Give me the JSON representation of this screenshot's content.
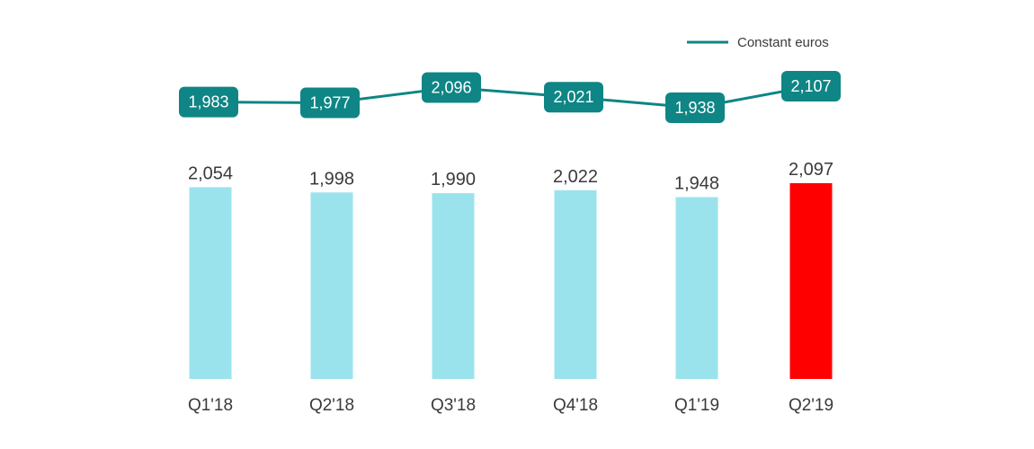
{
  "chart_data": {
    "type": "bar",
    "categories": [
      "Q1'18",
      "Q2'18",
      "Q3'18",
      "Q4'18",
      "Q1'19",
      "Q2'19"
    ],
    "values": [
      2054,
      1998,
      1990,
      2022,
      1948,
      2097
    ],
    "value_labels": [
      "2,054",
      "1,998",
      "1,990",
      "2,022",
      "1,948",
      "2,097"
    ],
    "ylim": [
      0,
      2097
    ],
    "highlight_index": 5,
    "line_series": {
      "name": "Constant euros",
      "values": [
        1983,
        1977,
        2096,
        2021,
        1938,
        2107
      ],
      "value_labels": [
        "1,983",
        "1,977",
        "2,096",
        "2,021",
        "1,938",
        "2,107"
      ]
    },
    "legend_position": "top-right",
    "grid": false,
    "colors": {
      "bar": "#9be3ec",
      "bar_highlight": "#ff0000",
      "line": "#0f8585",
      "line_label_bg": "#0f8585",
      "line_label_text": "#ffffff",
      "text": "#3a3a3a"
    }
  }
}
